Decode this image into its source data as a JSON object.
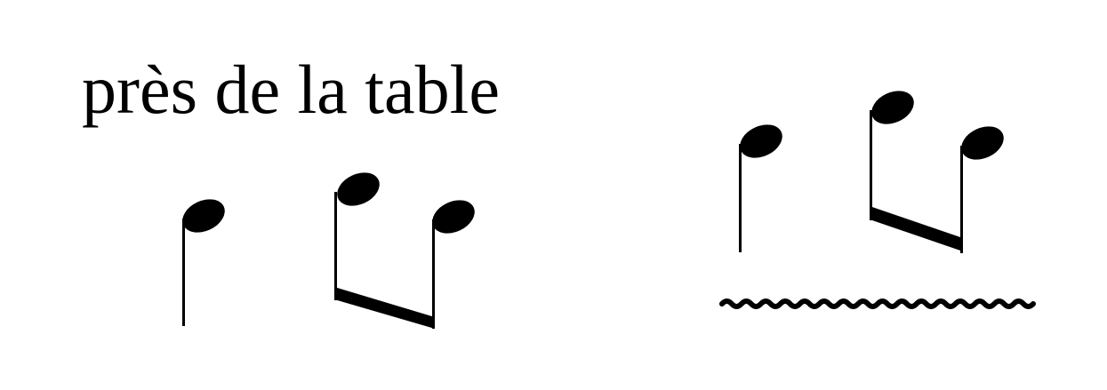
{
  "phrase": {
    "text": "près de la table"
  },
  "colors": {
    "ink": "#000000",
    "background": "#ffffff"
  },
  "groups": [
    {
      "name": "left-rhythm",
      "notes": [
        "quarter",
        "eighth",
        "eighth"
      ],
      "beamed_pairs": 1,
      "trill": false
    },
    {
      "name": "right-rhythm",
      "notes": [
        "quarter",
        "eighth",
        "eighth"
      ],
      "beamed_pairs": 1,
      "trill": true,
      "icon": "trill-wavy-line-icon"
    }
  ]
}
